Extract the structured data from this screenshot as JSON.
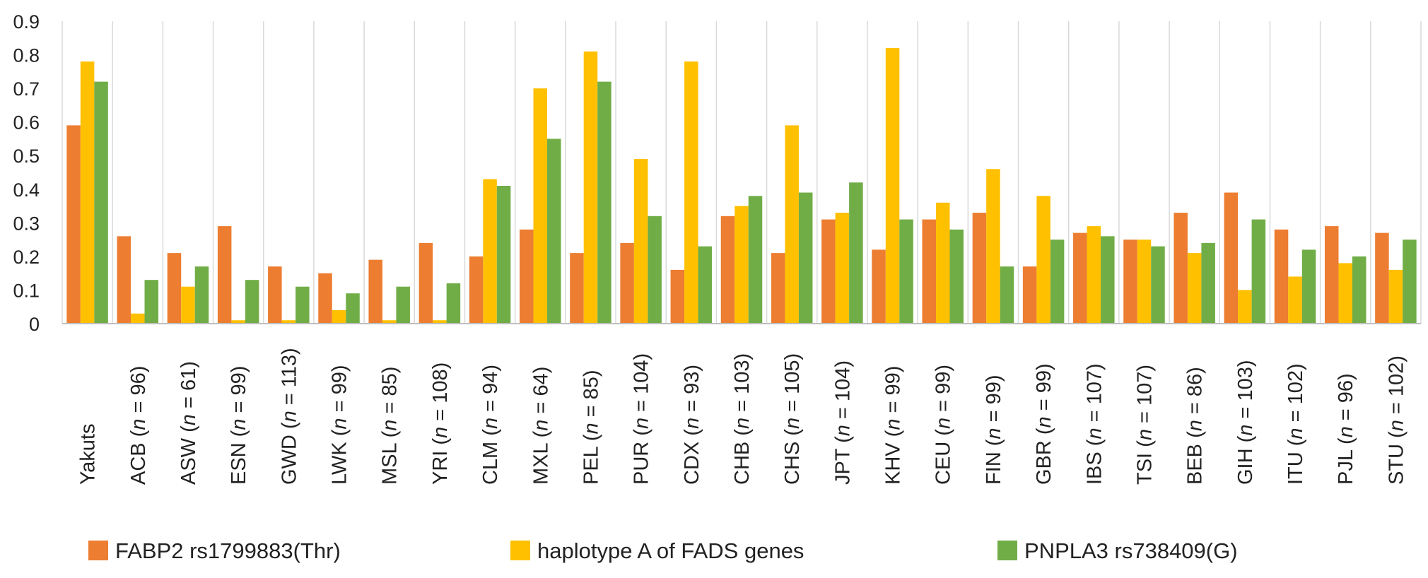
{
  "chart_data": {
    "type": "bar",
    "ylim": [
      0,
      0.9
    ],
    "yticks": [
      0,
      0.1,
      0.2,
      0.3,
      0.4,
      0.5,
      0.6,
      0.7,
      0.8,
      0.9
    ],
    "ytick_labels": [
      "0",
      "0.1",
      "0.2",
      "0.3",
      "0.4",
      "0.5",
      "0.6",
      "0.7",
      "0.8",
      "0.9"
    ],
    "grid": true,
    "legend_position": "bottom",
    "categories": [
      {
        "code": "Yakuts",
        "n": ""
      },
      {
        "code": "ACB",
        "n": "96"
      },
      {
        "code": "ASW",
        "n": "61"
      },
      {
        "code": "ESN",
        "n": "99"
      },
      {
        "code": "GWD",
        "n": "113"
      },
      {
        "code": "LWK",
        "n": "99"
      },
      {
        "code": "MSL",
        "n": "85"
      },
      {
        "code": "YRI",
        "n": "108"
      },
      {
        "code": "CLM",
        "n": "94"
      },
      {
        "code": "MXL",
        "n": "64"
      },
      {
        "code": "PEL",
        "n": "85"
      },
      {
        "code": "PUR",
        "n": "104"
      },
      {
        "code": "CDX",
        "n": "93"
      },
      {
        "code": "CHB",
        "n": "103"
      },
      {
        "code": "CHS",
        "n": "105"
      },
      {
        "code": "JPT",
        "n": "104"
      },
      {
        "code": "KHV",
        "n": "99"
      },
      {
        "code": "CEU",
        "n": "99"
      },
      {
        "code": "FIN",
        "n": "99"
      },
      {
        "code": "GBR",
        "n": "99"
      },
      {
        "code": "IBS",
        "n": "107"
      },
      {
        "code": "TSI",
        "n": "107"
      },
      {
        "code": "BEB",
        "n": "86"
      },
      {
        "code": "GIH",
        "n": "103"
      },
      {
        "code": "ITU",
        "n": "102"
      },
      {
        "code": "PJL",
        "n": "96"
      },
      {
        "code": "STU",
        "n": "102"
      }
    ],
    "n_prefix": "n",
    "series": [
      {
        "name": "FABP2 rs1799883(Thr)",
        "color": "#ED7D31",
        "values": [
          0.59,
          0.26,
          0.21,
          0.29,
          0.17,
          0.15,
          0.19,
          0.24,
          0.2,
          0.28,
          0.21,
          0.24,
          0.16,
          0.32,
          0.21,
          0.31,
          0.22,
          0.31,
          0.33,
          0.17,
          0.27,
          0.25,
          0.33,
          0.39,
          0.28,
          0.29,
          0.27
        ]
      },
      {
        "name": "haplotype A of FADS genes",
        "color": "#FFC000",
        "values": [
          0.78,
          0.03,
          0.11,
          0.01,
          0.01,
          0.04,
          0.01,
          0.01,
          0.43,
          0.7,
          0.81,
          0.49,
          0.78,
          0.35,
          0.59,
          0.33,
          0.82,
          0.36,
          0.46,
          0.38,
          0.29,
          0.25,
          0.21,
          0.1,
          0.14,
          0.18,
          0.16
        ]
      },
      {
        "name": "PNPLA3 rs738409(G)",
        "color": "#70AD47",
        "values": [
          0.72,
          0.13,
          0.17,
          0.13,
          0.11,
          0.09,
          0.11,
          0.12,
          0.41,
          0.55,
          0.72,
          0.32,
          0.23,
          0.38,
          0.39,
          0.42,
          0.31,
          0.28,
          0.17,
          0.25,
          0.26,
          0.23,
          0.24,
          0.31,
          0.22,
          0.2,
          0.25
        ]
      }
    ]
  }
}
